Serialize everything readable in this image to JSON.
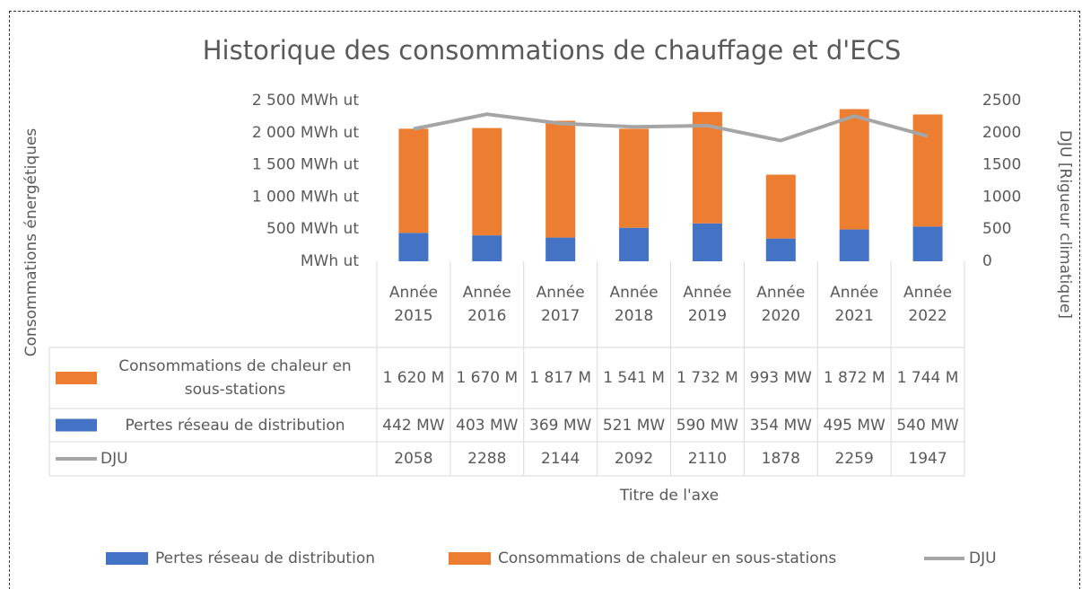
{
  "chart_data": {
    "type": "bar",
    "stacked": true,
    "title": "Historique des consommations de chauffage et d'ECS",
    "ylabel": "Consommations énergétiques",
    "y2label": "DJU [Rigueur climatique]",
    "xlabel": "Titre de l'axe",
    "categories": [
      "Année 2015",
      "Année 2016",
      "Année 2017",
      "Année 2018",
      "Année 2019",
      "Année 2020",
      "Année 2021",
      "Année 2022"
    ],
    "series": [
      {
        "name": "Pertes réseau de distribution",
        "color": "#4472c4",
        "type": "bar",
        "values": [
          442,
          403,
          369,
          521,
          590,
          354,
          495,
          540
        ],
        "value_labels": [
          "442 MW",
          "403 MW",
          "369 MW",
          "521 MW",
          "590 MW",
          "354 MW",
          "495 MW",
          "540 MW"
        ]
      },
      {
        "name": "Consommations de chaleur en sous-stations",
        "color": "#ed7d31",
        "type": "bar",
        "values": [
          1620,
          1670,
          1817,
          1541,
          1732,
          993,
          1872,
          1744
        ],
        "value_labels": [
          "1 620 M",
          "1 670 M",
          "1 817 M",
          "1 541 M",
          "1 732 M",
          "993 MW",
          "1 872 M",
          "1 744 M"
        ]
      },
      {
        "name": "DJU",
        "color": "#a5a5a5",
        "type": "line",
        "axis": "y2",
        "values": [
          2058,
          2288,
          2144,
          2092,
          2110,
          1878,
          2259,
          1947
        ]
      }
    ],
    "ylim": [
      0,
      2500
    ],
    "yticks": [
      {
        "value": 0,
        "label": "MWh ut"
      },
      {
        "value": 500,
        "label": "500 MWh ut"
      },
      {
        "value": 1000,
        "label": "1 000 MWh ut"
      },
      {
        "value": 1500,
        "label": "1 500 MWh ut"
      },
      {
        "value": 2000,
        "label": "2 000 MWh ut"
      },
      {
        "value": 2500,
        "label": "2 500 MWh ut"
      }
    ],
    "y2lim": [
      0,
      2500
    ],
    "y2ticks": [
      0,
      500,
      1000,
      1500,
      2000,
      2500
    ],
    "legend": "bottom"
  }
}
